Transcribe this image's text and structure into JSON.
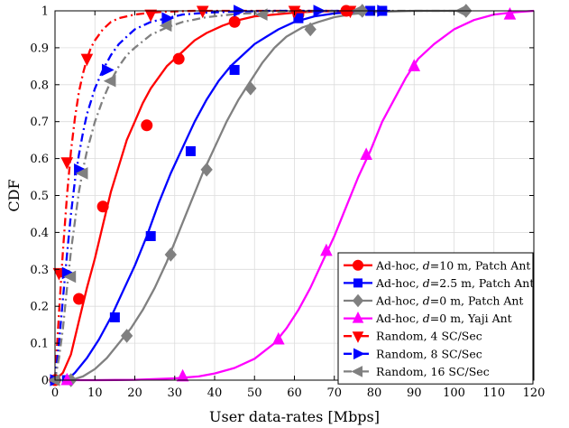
{
  "chart_data": {
    "type": "line",
    "xlabel": "User data-rates [Mbps]",
    "ylabel": "CDF",
    "xlim": [
      0,
      120
    ],
    "ylim": [
      0,
      1
    ],
    "xticks": [
      0,
      10,
      20,
      30,
      40,
      50,
      60,
      70,
      80,
      90,
      100,
      110,
      120
    ],
    "yticks": [
      0,
      0.1,
      0.2,
      0.3,
      0.4,
      0.5,
      0.6,
      0.7,
      0.8,
      0.9,
      1
    ],
    "xtick_labels": [
      "0",
      "10",
      "20",
      "30",
      "40",
      "50",
      "60",
      "70",
      "80",
      "90",
      "100",
      "110",
      "120"
    ],
    "ytick_labels": [
      "0",
      "0.1",
      "0.2",
      "0.3",
      "0.4",
      "0.5",
      "0.6",
      "0.7",
      "0.8",
      "0.9",
      "1"
    ],
    "grid": true,
    "legend_position": "bottom-right",
    "series": [
      {
        "name": "Ad-hoc, d=10 m, Patch Ant",
        "legend": {
          "prefix": "Ad-hoc, ",
          "italic": "d",
          "suffix": "=10 m, Patch Ant"
        },
        "color": "#ff0000",
        "dash": "solid",
        "marker": "circle",
        "x": [
          0,
          2,
          4,
          6,
          8,
          10,
          12,
          14,
          16,
          18,
          20,
          22,
          24,
          26,
          28,
          30,
          32,
          35,
          38,
          42,
          46,
          50,
          55,
          60,
          65,
          70,
          75
        ],
        "y": [
          0,
          0.02,
          0.07,
          0.16,
          0.25,
          0.33,
          0.42,
          0.51,
          0.58,
          0.65,
          0.7,
          0.75,
          0.79,
          0.82,
          0.85,
          0.87,
          0.89,
          0.92,
          0.94,
          0.96,
          0.975,
          0.985,
          0.99,
          0.995,
          0.998,
          0.999,
          1
        ],
        "marker_x": [
          0,
          6,
          12,
          23,
          31,
          45,
          61,
          73
        ],
        "marker_y": [
          0,
          0.22,
          0.47,
          0.69,
          0.87,
          0.97,
          0.99,
          1
        ]
      },
      {
        "name": "Ad-hoc, d=2.5 m, Patch Ant",
        "legend": {
          "prefix": "Ad-hoc, ",
          "italic": "d",
          "suffix": "=2.5 m, Patch Ant"
        },
        "color": "#0000ff",
        "dash": "solid",
        "marker": "square",
        "x": [
          3,
          5,
          8,
          11,
          14,
          17,
          20,
          23,
          26,
          29,
          32,
          35,
          38,
          41,
          44,
          47,
          50,
          53,
          56,
          60,
          65,
          70,
          75,
          80,
          84
        ],
        "y": [
          0,
          0.02,
          0.06,
          0.11,
          0.17,
          0.24,
          0.31,
          0.39,
          0.48,
          0.56,
          0.63,
          0.7,
          0.76,
          0.81,
          0.85,
          0.88,
          0.91,
          0.93,
          0.95,
          0.97,
          0.985,
          0.993,
          0.997,
          0.999,
          1
        ],
        "marker_x": [
          3,
          15,
          24,
          34,
          45,
          61,
          79,
          82
        ],
        "marker_y": [
          0,
          0.17,
          0.39,
          0.62,
          0.84,
          0.98,
          1,
          1
        ]
      },
      {
        "name": "Ad-hoc, d=0 m, Patch Ant",
        "legend": {
          "prefix": "Ad-hoc, ",
          "italic": "d",
          "suffix": "=0 m, Patch Ant"
        },
        "color": "#808080",
        "dash": "solid",
        "marker": "diamond",
        "x": [
          4,
          7,
          10,
          13,
          16,
          19,
          22,
          25,
          28,
          31,
          34,
          37,
          40,
          43,
          46,
          49,
          52,
          55,
          58,
          62,
          66,
          70,
          75,
          80,
          90,
          100,
          104
        ],
        "y": [
          0,
          0.01,
          0.03,
          0.06,
          0.1,
          0.14,
          0.19,
          0.25,
          0.32,
          0.4,
          0.48,
          0.56,
          0.63,
          0.7,
          0.76,
          0.81,
          0.86,
          0.9,
          0.93,
          0.955,
          0.97,
          0.983,
          0.992,
          0.997,
          1,
          1,
          1
        ],
        "marker_x": [
          4,
          18,
          29,
          38,
          49,
          64,
          77,
          103
        ],
        "marker_y": [
          0,
          0.12,
          0.34,
          0.57,
          0.79,
          0.95,
          1,
          1
        ]
      },
      {
        "name": "Ad-hoc, d=0 m, Yaji Ant",
        "legend": {
          "prefix": "Ad-hoc, ",
          "italic": "d",
          "suffix": "=0 m, Yaji Ant"
        },
        "color": "#ff00ff",
        "dash": "solid",
        "marker": "triangle-up",
        "x": [
          3,
          10,
          20,
          30,
          36,
          40,
          45,
          50,
          55,
          58,
          61,
          64,
          67,
          70,
          73,
          76,
          79,
          82,
          85,
          88,
          91,
          95,
          100,
          105,
          110,
          115,
          120
        ],
        "y": [
          0,
          0,
          0.001,
          0.005,
          0.01,
          0.018,
          0.033,
          0.058,
          0.1,
          0.14,
          0.19,
          0.25,
          0.32,
          0.39,
          0.47,
          0.55,
          0.62,
          0.7,
          0.76,
          0.82,
          0.87,
          0.91,
          0.95,
          0.975,
          0.99,
          0.996,
          1
        ],
        "marker_x": [
          3,
          32,
          56,
          68,
          78,
          90,
          114
        ],
        "marker_y": [
          0,
          0.01,
          0.11,
          0.35,
          0.61,
          0.85,
          0.99
        ]
      },
      {
        "name": "Random, 4 SC/Sec",
        "legend": {
          "prefix": "Random, 4 SC/Sec",
          "italic": "",
          "suffix": ""
        },
        "color": "#ff0000",
        "dash": "dashdot",
        "marker": "triangle-down",
        "x": [
          0,
          1,
          2,
          3,
          4,
          5,
          6,
          7,
          8,
          9,
          10,
          12,
          14,
          16,
          18,
          20,
          24,
          28,
          35,
          45,
          60,
          75
        ],
        "y": [
          0,
          0.18,
          0.35,
          0.5,
          0.62,
          0.71,
          0.78,
          0.83,
          0.87,
          0.9,
          0.92,
          0.95,
          0.97,
          0.98,
          0.985,
          0.99,
          0.995,
          0.998,
          1,
          1,
          1,
          1
        ],
        "marker_x": [
          1,
          3,
          8,
          24,
          37,
          60,
          74
        ],
        "marker_y": [
          0.29,
          0.59,
          0.87,
          0.99,
          1,
          1,
          1
        ]
      },
      {
        "name": "Random, 8 SC/Sec",
        "legend": {
          "prefix": "Random, 8 SC/Sec",
          "italic": "",
          "suffix": ""
        },
        "color": "#0000ff",
        "dash": "dashdot",
        "marker": "triangle-right",
        "x": [
          0,
          1,
          2,
          3,
          4,
          5,
          6,
          7,
          8,
          10,
          12,
          14,
          16,
          18,
          20,
          24,
          28,
          32,
          38,
          45,
          55,
          65,
          75,
          82
        ],
        "y": [
          0,
          0.1,
          0.22,
          0.34,
          0.45,
          0.54,
          0.61,
          0.67,
          0.72,
          0.79,
          0.84,
          0.88,
          0.91,
          0.93,
          0.95,
          0.97,
          0.98,
          0.99,
          0.995,
          0.998,
          1,
          1,
          1,
          1
        ],
        "marker_x": [
          0,
          3,
          6,
          13,
          28,
          46,
          66,
          82
        ],
        "marker_y": [
          0,
          0.29,
          0.57,
          0.84,
          0.98,
          1,
          1,
          1
        ]
      },
      {
        "name": "Random, 16 SC/Sec",
        "legend": {
          "prefix": "Random, 16 SC/Sec",
          "italic": "",
          "suffix": ""
        },
        "color": "#808080",
        "dash": "dashdot",
        "marker": "triangle-left",
        "x": [
          0,
          1,
          2,
          3,
          4,
          5,
          6,
          7,
          8,
          10,
          12,
          14,
          16,
          18,
          20,
          24,
          28,
          32,
          38,
          45,
          55,
          65,
          80,
          100,
          103
        ],
        "y": [
          0,
          0.06,
          0.14,
          0.25,
          0.35,
          0.43,
          0.51,
          0.57,
          0.62,
          0.7,
          0.76,
          0.81,
          0.85,
          0.88,
          0.9,
          0.935,
          0.955,
          0.97,
          0.983,
          0.991,
          0.997,
          0.999,
          1,
          1,
          1
        ],
        "marker_x": [
          0,
          4,
          7,
          14,
          28,
          52,
          76,
          102
        ],
        "marker_y": [
          0,
          0.28,
          0.56,
          0.81,
          0.96,
          0.99,
          1,
          1
        ]
      }
    ]
  }
}
